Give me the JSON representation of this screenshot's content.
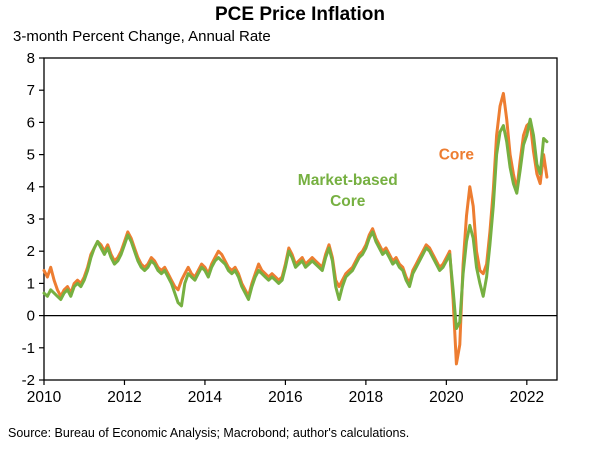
{
  "page": {
    "title": "PCE Price Inflation",
    "subtitle": "3-month Percent Change, Annual Rate",
    "source_note": "Source: Bureau of Economic Analysis; Macrobond; author's calculations."
  },
  "chart_data": {
    "type": "line",
    "title": "PCE Price Inflation",
    "subtitle": "3-month Percent Change, Annual Rate",
    "xlabel": "",
    "ylabel": "",
    "x_start_year": 2010,
    "x_interval_months": 1,
    "xlim": [
      2010,
      2022.75
    ],
    "ylim": [
      -2,
      8
    ],
    "x_ticks": [
      2010,
      2012,
      2014,
      2016,
      2018,
      2020,
      2022
    ],
    "y_ticks": [
      -2,
      -1,
      0,
      1,
      2,
      3,
      4,
      5,
      6,
      7,
      8
    ],
    "grid": false,
    "zero_line": true,
    "legend_position": "inline-annotations",
    "series": [
      {
        "name": "Core",
        "color": "#ED7D31",
        "values": [
          1.4,
          1.2,
          1.5,
          1.1,
          0.8,
          0.6,
          0.8,
          0.9,
          0.7,
          1.0,
          1.1,
          1.0,
          1.2,
          1.5,
          1.9,
          2.1,
          2.3,
          2.2,
          2.0,
          2.2,
          1.9,
          1.7,
          1.8,
          2.0,
          2.3,
          2.6,
          2.4,
          2.1,
          1.8,
          1.6,
          1.5,
          1.6,
          1.8,
          1.7,
          1.5,
          1.4,
          1.5,
          1.3,
          1.1,
          0.9,
          0.8,
          1.1,
          1.3,
          1.5,
          1.3,
          1.2,
          1.4,
          1.6,
          1.5,
          1.3,
          1.6,
          1.8,
          2.0,
          1.9,
          1.7,
          1.5,
          1.4,
          1.5,
          1.3,
          1.0,
          0.8,
          0.6,
          1.0,
          1.3,
          1.6,
          1.4,
          1.3,
          1.2,
          1.3,
          1.2,
          1.1,
          1.2,
          1.6,
          2.1,
          1.9,
          1.6,
          1.7,
          1.8,
          1.6,
          1.7,
          1.8,
          1.7,
          1.6,
          1.5,
          1.9,
          2.2,
          1.8,
          1.1,
          0.9,
          1.1,
          1.3,
          1.4,
          1.5,
          1.7,
          1.9,
          2.0,
          2.2,
          2.5,
          2.7,
          2.4,
          2.2,
          2.0,
          2.1,
          1.9,
          1.7,
          1.8,
          1.6,
          1.5,
          1.2,
          1.0,
          1.4,
          1.6,
          1.8,
          2.0,
          2.2,
          2.1,
          1.9,
          1.7,
          1.5,
          1.6,
          1.8,
          2.0,
          0.5,
          -1.5,
          -0.9,
          1.6,
          3.1,
          4.0,
          3.4,
          2.0,
          1.4,
          1.3,
          1.6,
          2.6,
          3.9,
          5.6,
          6.5,
          6.9,
          6.1,
          5.0,
          4.4,
          3.9,
          4.8,
          5.6,
          5.9,
          6.0,
          5.1,
          4.4,
          4.1,
          5.0,
          4.3
        ]
      },
      {
        "name": "Market-based Core",
        "color": "#76B041",
        "values": [
          0.7,
          0.6,
          0.8,
          0.7,
          0.6,
          0.5,
          0.7,
          0.8,
          0.6,
          0.9,
          1.0,
          0.9,
          1.1,
          1.4,
          1.8,
          2.1,
          2.3,
          2.1,
          1.9,
          2.1,
          1.8,
          1.6,
          1.7,
          1.9,
          2.2,
          2.5,
          2.3,
          2.0,
          1.7,
          1.5,
          1.4,
          1.5,
          1.7,
          1.6,
          1.4,
          1.3,
          1.4,
          1.2,
          1.0,
          0.7,
          0.4,
          0.3,
          1.0,
          1.3,
          1.2,
          1.1,
          1.3,
          1.5,
          1.4,
          1.2,
          1.5,
          1.7,
          1.8,
          1.7,
          1.6,
          1.4,
          1.3,
          1.4,
          1.2,
          0.9,
          0.7,
          0.5,
          0.9,
          1.2,
          1.4,
          1.3,
          1.2,
          1.1,
          1.2,
          1.1,
          1.0,
          1.1,
          1.5,
          2.0,
          1.8,
          1.5,
          1.6,
          1.7,
          1.5,
          1.6,
          1.7,
          1.6,
          1.5,
          1.4,
          1.8,
          2.1,
          1.7,
          0.9,
          0.5,
          0.9,
          1.2,
          1.3,
          1.4,
          1.6,
          1.8,
          1.9,
          2.1,
          2.4,
          2.6,
          2.3,
          2.1,
          1.9,
          2.0,
          1.8,
          1.6,
          1.7,
          1.5,
          1.4,
          1.1,
          0.9,
          1.3,
          1.5,
          1.7,
          1.9,
          2.1,
          2.0,
          1.8,
          1.6,
          1.4,
          1.5,
          1.7,
          1.9,
          0.8,
          -0.4,
          -0.2,
          1.3,
          2.3,
          2.8,
          2.4,
          1.5,
          1.0,
          0.6,
          1.2,
          2.2,
          3.4,
          5.0,
          5.7,
          5.9,
          5.4,
          4.6,
          4.1,
          3.8,
          4.5,
          5.3,
          5.6,
          6.1,
          5.6,
          4.7,
          4.4,
          5.5,
          5.4
        ]
      }
    ],
    "annotations": [
      {
        "text": "Market-based",
        "x": 2017.55,
        "y": 4.05,
        "color": "#76B041",
        "series": "Market-based Core"
      },
      {
        "text": "Core",
        "x": 2017.55,
        "y": 3.4,
        "color": "#76B041",
        "series": "Market-based Core"
      },
      {
        "text": "Core",
        "x": 2020.25,
        "y": 4.85,
        "color": "#ED7D31",
        "series": "Core"
      }
    ]
  }
}
